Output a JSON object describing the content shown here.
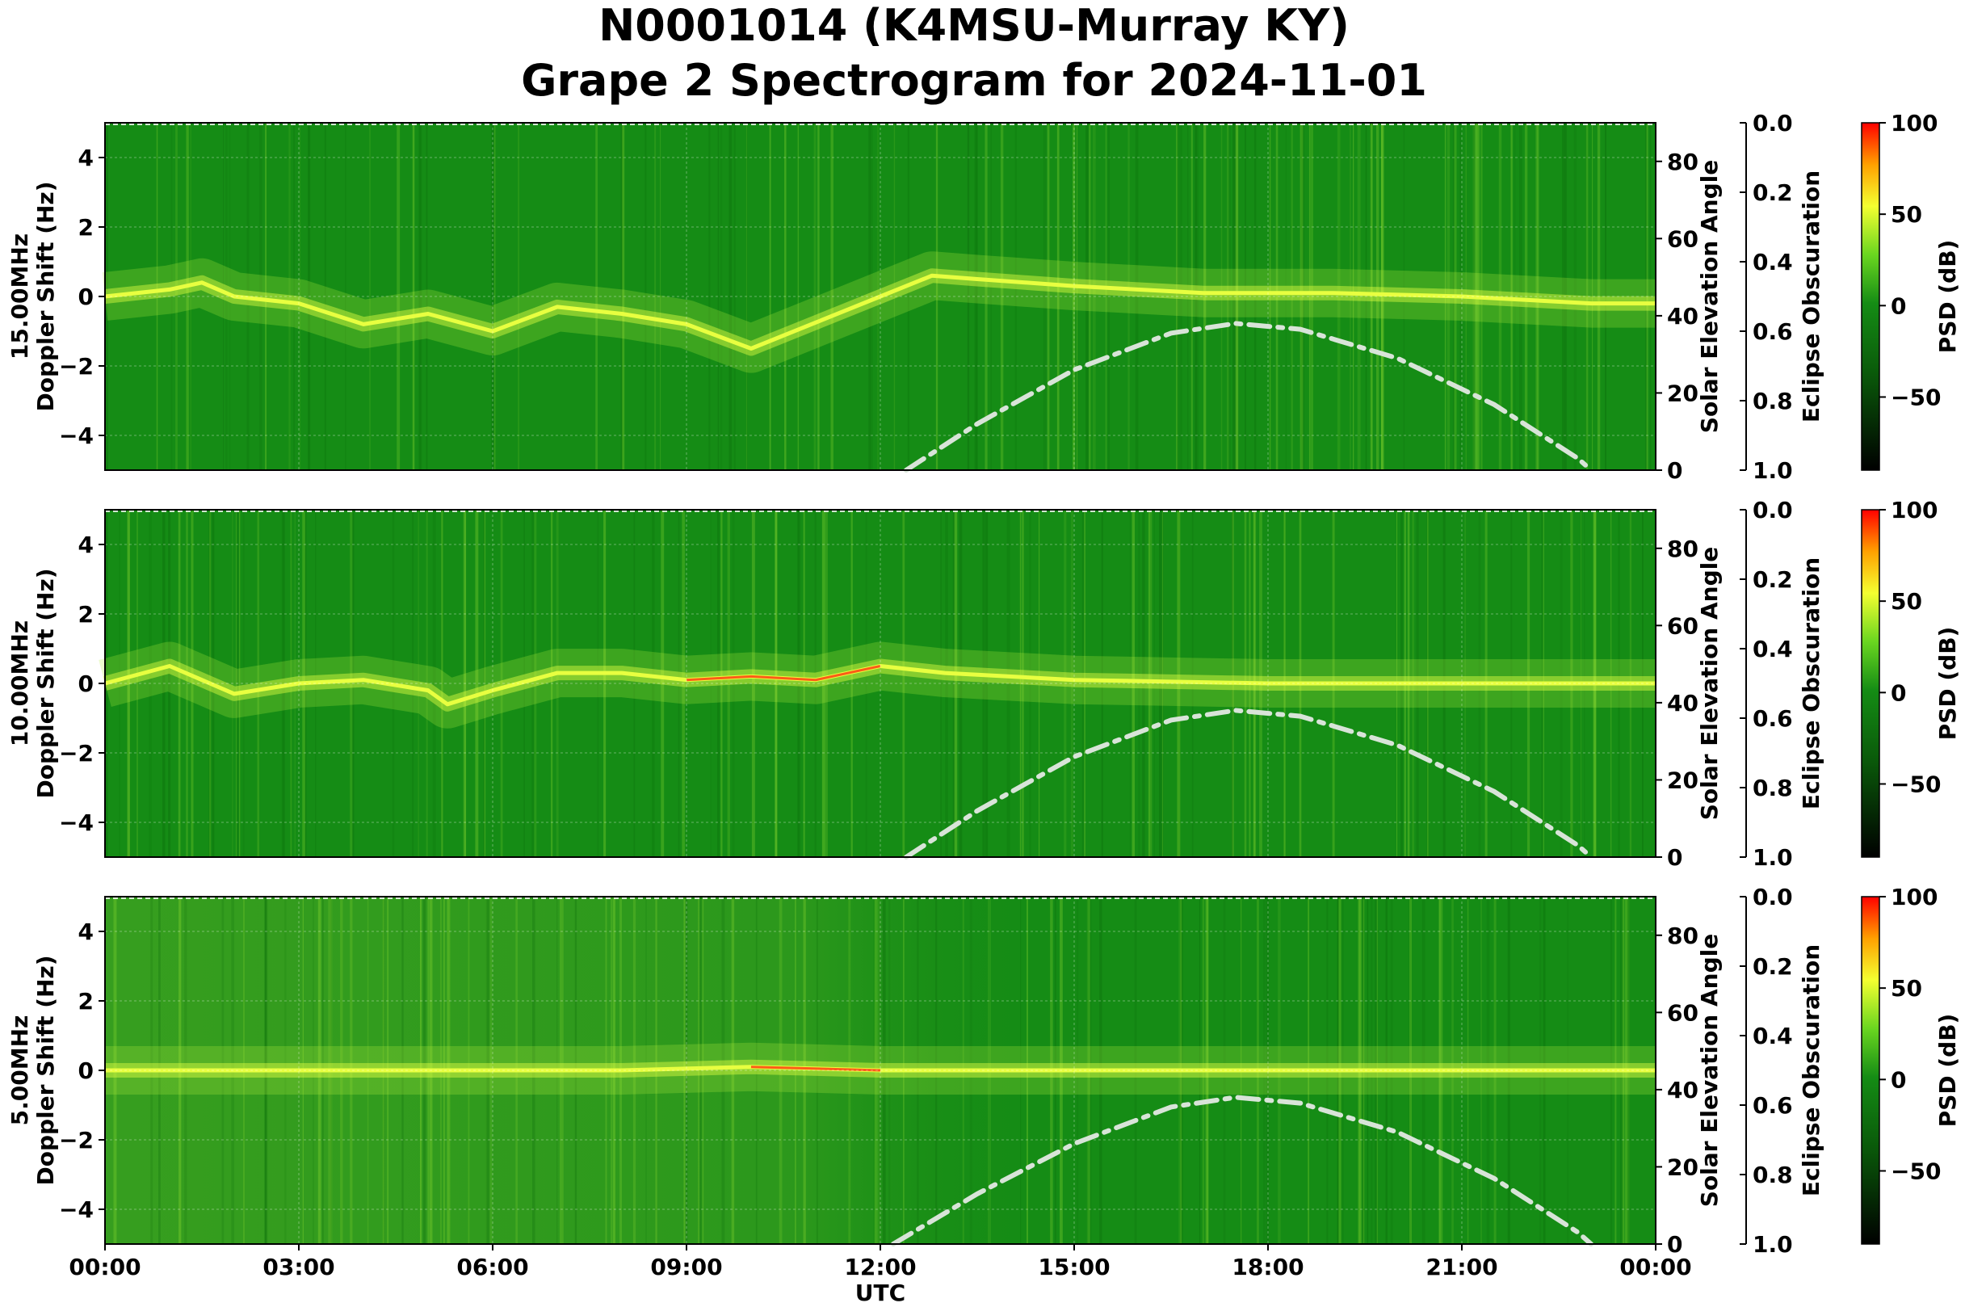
{
  "title_line1": "N0001014 (K4MSU-Murray KY)",
  "title_line2": "Grape 2 Spectrogram for 2024-11-01",
  "colors": {
    "background_green": "#147a14",
    "dark_green": "#0a5a0a",
    "trace_yellow": "#e8ff40",
    "trace_red": "#ff4010",
    "solar_curve": "#d8e4d8"
  },
  "chart_data": [
    {
      "type": "heatmap",
      "band": "15.00MHz",
      "ylabel": "15.00MHz\nDoppler Shift (Hz)",
      "ylim": [
        -5,
        5
      ],
      "yticks": [
        "4",
        "2",
        "0",
        "−2",
        "−4"
      ],
      "right_axis_label": "Solar Elevation Angle",
      "right_ticks": [
        "80",
        "60",
        "40",
        "20",
        "0"
      ],
      "eclipse_label": "Eclipse Obscuration",
      "eclipse_ticks": [
        "0.0",
        "0.2",
        "0.4",
        "0.6",
        "0.8",
        "1.0"
      ],
      "colorbar_label": "PSD (dB)",
      "colorbar_ticks": [
        "100",
        "50",
        "0",
        "−50"
      ],
      "colorbar_range": [
        -90,
        100
      ],
      "doppler_trace_hz": [
        [
          0,
          0
        ],
        [
          1,
          0.2
        ],
        [
          1.5,
          0.4
        ],
        [
          2,
          0
        ],
        [
          3,
          -0.2
        ],
        [
          4,
          -0.8
        ],
        [
          5,
          -0.5
        ],
        [
          6,
          -1
        ],
        [
          7,
          -0.3
        ],
        [
          8,
          -0.5
        ],
        [
          9,
          -0.8
        ],
        [
          10,
          -1.5
        ],
        [
          12,
          0
        ],
        [
          12.8,
          0.6
        ],
        [
          13.5,
          0.5
        ],
        [
          15,
          0.3
        ],
        [
          17,
          0.1
        ],
        [
          19,
          0.1
        ],
        [
          21,
          0
        ],
        [
          23,
          -0.2
        ],
        [
          24,
          -0.2
        ]
      ],
      "solar_elevation_deg": [
        [
          12.4,
          0
        ],
        [
          13.5,
          12
        ],
        [
          15,
          26
        ],
        [
          16.5,
          35.5
        ],
        [
          17.5,
          38
        ],
        [
          18.5,
          36.5
        ],
        [
          20,
          29
        ],
        [
          21.5,
          17
        ],
        [
          22.8,
          3
        ],
        [
          23,
          0
        ]
      ]
    },
    {
      "type": "heatmap",
      "band": "10.00MHz",
      "ylabel": "10.00MHz\nDoppler Shift (Hz)",
      "ylim": [
        -5,
        5
      ],
      "yticks": [
        "4",
        "2",
        "0",
        "−2",
        "−4"
      ],
      "right_axis_label": "Solar Elevation Angle",
      "right_ticks": [
        "80",
        "60",
        "40",
        "20",
        "0"
      ],
      "eclipse_label": "Eclipse Obscuration",
      "eclipse_ticks": [
        "0.0",
        "0.2",
        "0.4",
        "0.6",
        "0.8",
        "1.0"
      ],
      "colorbar_label": "PSD (dB)",
      "colorbar_ticks": [
        "100",
        "50",
        "0",
        "−50"
      ],
      "colorbar_range": [
        -90,
        100
      ],
      "doppler_trace_hz": [
        [
          0,
          0
        ],
        [
          1,
          0.5
        ],
        [
          2,
          -0.3
        ],
        [
          3,
          0
        ],
        [
          4,
          0.1
        ],
        [
          5,
          -0.2
        ],
        [
          5.3,
          -0.6
        ],
        [
          6,
          -0.2
        ],
        [
          7,
          0.3
        ],
        [
          8,
          0.3
        ],
        [
          9,
          0.1
        ],
        [
          10,
          0.2
        ],
        [
          11,
          0.1
        ],
        [
          12,
          0.5
        ],
        [
          13,
          0.3
        ],
        [
          15,
          0.1
        ],
        [
          18,
          0
        ],
        [
          21,
          0
        ],
        [
          24,
          0
        ]
      ],
      "solar_elevation_deg": [
        [
          12.4,
          0
        ],
        [
          13.5,
          12
        ],
        [
          15,
          26
        ],
        [
          16.5,
          35.5
        ],
        [
          17.5,
          38
        ],
        [
          18.5,
          36.5
        ],
        [
          20,
          29
        ],
        [
          21.5,
          17
        ],
        [
          22.8,
          3
        ],
        [
          23,
          0
        ]
      ]
    },
    {
      "type": "heatmap",
      "band": "5.00MHz",
      "ylabel": "5.00MHz\nDoppler Shift (Hz)",
      "ylim": [
        -5,
        5
      ],
      "xlabel": "UTC",
      "xticks": [
        "00:00",
        "03:00",
        "06:00",
        "09:00",
        "12:00",
        "15:00",
        "18:00",
        "21:00",
        "00:00"
      ],
      "yticks": [
        "4",
        "2",
        "0",
        "−2",
        "−4"
      ],
      "right_axis_label": "Solar Elevation Angle",
      "right_ticks": [
        "80",
        "60",
        "40",
        "20",
        "0"
      ],
      "eclipse_label": "Eclipse Obscuration",
      "eclipse_ticks": [
        "0.0",
        "0.2",
        "0.4",
        "0.6",
        "0.8",
        "1.0"
      ],
      "colorbar_label": "PSD (dB)",
      "colorbar_ticks": [
        "100",
        "50",
        "0",
        "−50"
      ],
      "colorbar_range": [
        -90,
        100
      ],
      "doppler_trace_hz": [
        [
          0,
          0
        ],
        [
          2,
          0
        ],
        [
          4,
          0
        ],
        [
          6,
          0
        ],
        [
          8,
          0
        ],
        [
          10,
          0.1
        ],
        [
          12,
          0
        ],
        [
          13,
          0
        ],
        [
          15,
          0
        ],
        [
          18,
          0
        ],
        [
          21,
          0
        ],
        [
          24,
          0
        ]
      ],
      "solar_elevation_deg": [
        [
          12.2,
          0
        ],
        [
          13.5,
          13
        ],
        [
          15,
          26
        ],
        [
          16.5,
          35.5
        ],
        [
          17.5,
          38
        ],
        [
          18.5,
          36.5
        ],
        [
          20,
          29
        ],
        [
          21.5,
          17
        ],
        [
          22.8,
          3
        ],
        [
          23,
          0
        ]
      ]
    }
  ]
}
